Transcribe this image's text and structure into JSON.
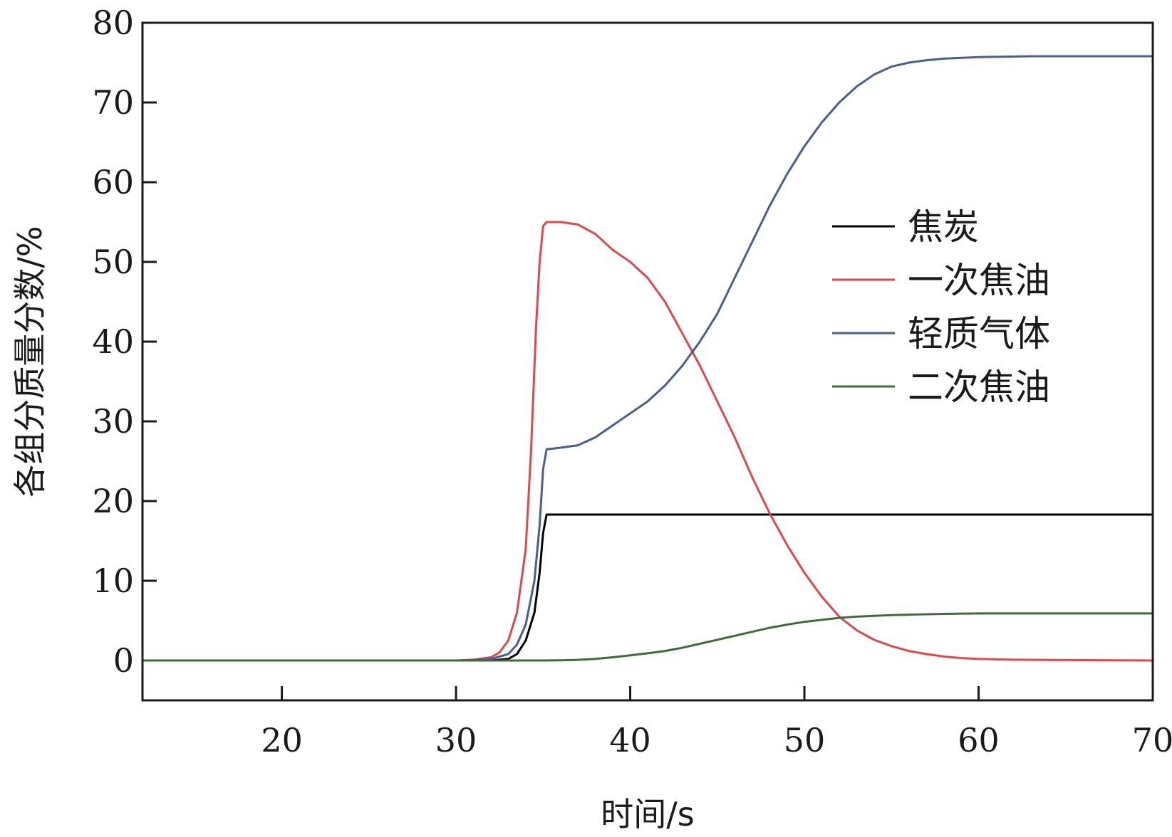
{
  "chart_data": {
    "type": "line",
    "xlabel": "时间/s",
    "ylabel": "各组分质量分数/%",
    "xlim": [
      12,
      70
    ],
    "ylim": [
      -5,
      80
    ],
    "xticks": [
      20,
      30,
      40,
      50,
      60,
      70
    ],
    "yticks": [
      0,
      10,
      20,
      30,
      40,
      50,
      60,
      70,
      80
    ],
    "legend_position": "right",
    "series": [
      {
        "name": "焦炭",
        "color": "#000000",
        "x": [
          12,
          30,
          32,
          33,
          33.5,
          34,
          34.5,
          34.8,
          35,
          35.2,
          36,
          40,
          50,
          60,
          70
        ],
        "y": [
          0,
          0,
          0,
          0.2,
          0.8,
          2.5,
          6,
          11,
          16,
          18.3,
          18.3,
          18.3,
          18.3,
          18.3,
          18.3
        ]
      },
      {
        "name": "一次焦油",
        "color": "#e0474c",
        "x": [
          12,
          30,
          31,
          32,
          32.5,
          33,
          33.5,
          34,
          34.3,
          34.6,
          34.8,
          35,
          35.2,
          36,
          37,
          38,
          39,
          40,
          41,
          42,
          43,
          44,
          45,
          46,
          47,
          48,
          49,
          50,
          51,
          52,
          53,
          54,
          55,
          56,
          57,
          58,
          59,
          60,
          62,
          65,
          70
        ],
        "y": [
          0,
          0,
          0.1,
          0.4,
          1,
          2.5,
          6,
          14,
          26,
          42,
          50,
          54.5,
          55,
          55,
          54.7,
          53.5,
          51.5,
          50,
          48,
          45,
          41,
          37,
          32.5,
          28,
          23,
          18.5,
          14.5,
          11,
          8,
          5.5,
          3.8,
          2.6,
          1.8,
          1.2,
          0.8,
          0.5,
          0.3,
          0.2,
          0.1,
          0.05,
          0
        ]
      },
      {
        "name": "轻质气体",
        "color": "#4a5e8c",
        "x": [
          12,
          30,
          31,
          32,
          33,
          33.5,
          34,
          34.5,
          34.8,
          35,
          35.2,
          36,
          37,
          38,
          39,
          40,
          41,
          42,
          43,
          44,
          45,
          46,
          47,
          48,
          49,
          50,
          51,
          52,
          53,
          54,
          55,
          56,
          57,
          58,
          60,
          63,
          66,
          70
        ],
        "y": [
          0,
          0,
          0.05,
          0.2,
          0.8,
          2,
          4.5,
          10,
          17,
          24,
          26.5,
          26.7,
          27,
          28,
          29.5,
          31,
          32.5,
          34.5,
          37,
          40,
          43.5,
          48,
          52.5,
          57,
          61,
          64.5,
          67.5,
          70,
          72,
          73.5,
          74.5,
          75,
          75.3,
          75.5,
          75.7,
          75.8,
          75.8,
          75.8
        ]
      },
      {
        "name": "二次焦油",
        "color": "#3f6b3a",
        "x": [
          12,
          35,
          36,
          37,
          38,
          39,
          40,
          41,
          42,
          43,
          44,
          45,
          46,
          47,
          48,
          49,
          50,
          51,
          52,
          53,
          54,
          55,
          56,
          58,
          60,
          63,
          66,
          70
        ],
        "y": [
          0,
          0,
          0.02,
          0.08,
          0.2,
          0.4,
          0.65,
          0.9,
          1.2,
          1.6,
          2.1,
          2.6,
          3.1,
          3.6,
          4.1,
          4.5,
          4.85,
          5.1,
          5.35,
          5.5,
          5.6,
          5.7,
          5.75,
          5.85,
          5.9,
          5.9,
          5.9,
          5.9
        ]
      }
    ]
  }
}
